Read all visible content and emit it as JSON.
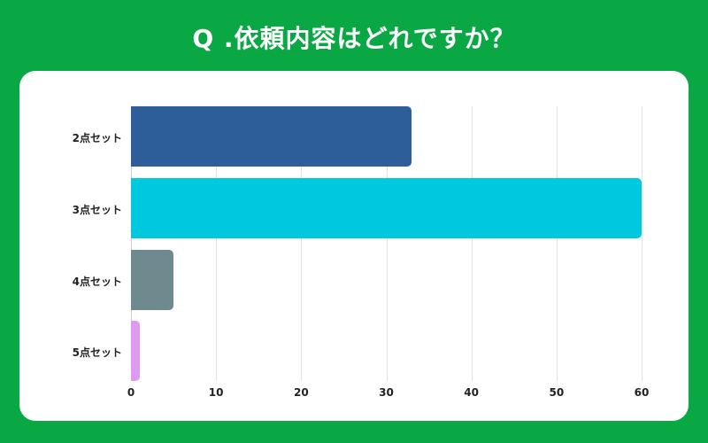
{
  "title": "Q .依頼内容はどれですか？",
  "colors": {
    "background": "#0aa844",
    "card": "#ffffff"
  },
  "chart_data": {
    "type": "bar",
    "orientation": "horizontal",
    "title": "Q .依頼内容はどれですか？",
    "categories": [
      "2点セット",
      "3点セット",
      "4点セット",
      "5点セット"
    ],
    "values": [
      33,
      60,
      5,
      1
    ],
    "colors": [
      "#2e5e9a",
      "#00c8de",
      "#6e8a8e",
      "#dd9af0"
    ],
    "xlabel": "",
    "ylabel": "",
    "xlim": [
      0,
      60
    ],
    "xticks": [
      "0",
      "10",
      "20",
      "30",
      "40",
      "50",
      "60"
    ],
    "grid": true,
    "legend": "none"
  }
}
